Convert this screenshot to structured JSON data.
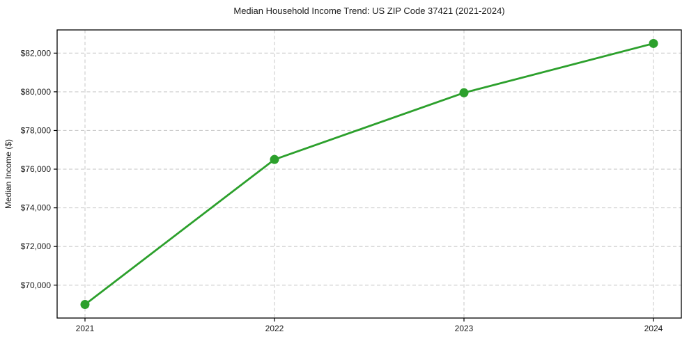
{
  "page": {
    "background": "#ffffff"
  },
  "chart_data": {
    "type": "line",
    "title": "Median Household Income Trend: US ZIP Code 37421 (2021-2024)",
    "xlabel": "",
    "ylabel": "Median Income ($)",
    "categories": [
      "2021",
      "2022",
      "2023",
      "2024"
    ],
    "values": [
      69000,
      76500,
      79950,
      82500
    ],
    "ylim": [
      68300,
      83200
    ],
    "yticks": {
      "values": [
        70000,
        72000,
        74000,
        76000,
        78000,
        80000,
        82000
      ],
      "labels": [
        "$70,000",
        "$72,000",
        "$74,000",
        "$76,000",
        "$78,000",
        "$80,000",
        "$82,000"
      ]
    },
    "grid": true,
    "grid_style": "dashed",
    "legend": "none",
    "marker": "circle",
    "colors": {
      "line": "#2ca02c",
      "marker": "#2ca02c",
      "grid": "#cccccc",
      "spine": "#000000",
      "text": "#1a1a1a"
    }
  }
}
